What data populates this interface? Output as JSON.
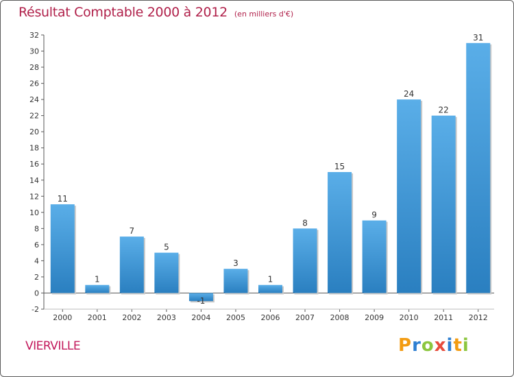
{
  "chart_data": {
    "type": "bar",
    "title": "Résultat Comptable 2000 à 2012",
    "subtitle": "(en milliers d'€)",
    "categories": [
      "2000",
      "2001",
      "2002",
      "2003",
      "2004",
      "2005",
      "2006",
      "2007",
      "2008",
      "2009",
      "2010",
      "2011",
      "2012"
    ],
    "values": [
      11,
      1,
      7,
      5,
      -1,
      3,
      1,
      8,
      15,
      9,
      24,
      22,
      31
    ],
    "ylim": [
      -2,
      32
    ],
    "yticks": [
      -2,
      0,
      2,
      4,
      6,
      8,
      10,
      12,
      14,
      16,
      18,
      20,
      22,
      24,
      26,
      28,
      30,
      32
    ],
    "xlabel": "",
    "ylabel": "",
    "grid": false,
    "bar_color_top": "#5aaee8",
    "bar_color_bottom": "#2a7fc0"
  },
  "footer": {
    "place": "VIERVILLE",
    "logo": {
      "letters": [
        "P",
        "r",
        "o",
        "x",
        "i",
        "t",
        "i"
      ],
      "colors": [
        "#f39c12",
        "#2e7fd1",
        "#8cc63f",
        "#e74c3c",
        "#2e7fd1",
        "#f39c12",
        "#8cc63f"
      ]
    }
  }
}
